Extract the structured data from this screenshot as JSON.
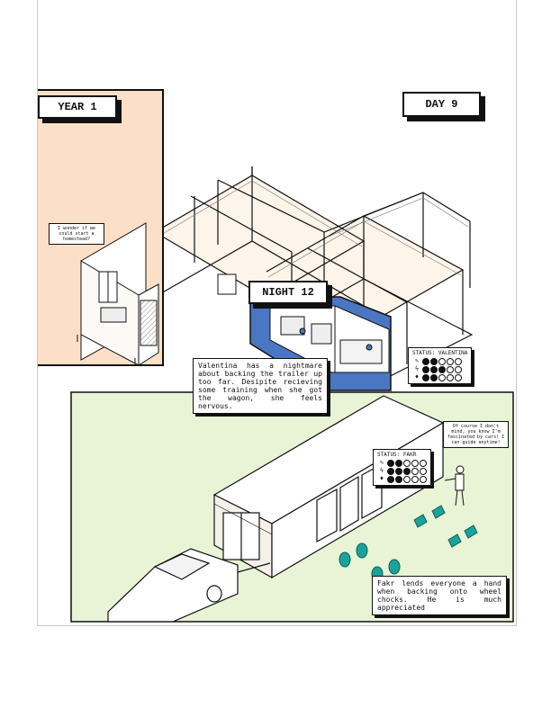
{
  "panels": {
    "year_label": "YEAR 1",
    "day_label": "DAY 9",
    "night_label": "NIGHT 12"
  },
  "bubbles": {
    "homestead": "I wonder if we could start a homestead?",
    "fakr_speech": "Of course I don't mind, you know I'm fascinated by cars! I can guide anytime!"
  },
  "captions": {
    "valentina": "Valentina has a nightmare about backing the trailer up too far. Desipite recieving some training when she got the wagon, she feels nervous.",
    "fakr": "Fakr lends everyone a hand when backing onto wheel chocks. He is much appreciated"
  },
  "status_valentina": {
    "title": "STATUS: VALENTINA",
    "rows": [
      {
        "icon": "wrench-icon",
        "glyph": "✎",
        "filled": 2,
        "total": 5
      },
      {
        "icon": "lightning-icon",
        "glyph": "ϟ",
        "filled": 3,
        "total": 5
      },
      {
        "icon": "thumbs-up-icon",
        "glyph": "♦",
        "filled": 2,
        "total": 5
      }
    ]
  },
  "status_fakr": {
    "title": "STATUS: FAKR",
    "rows": [
      {
        "icon": "wrench-icon",
        "glyph": "✎",
        "filled": 2,
        "total": 5
      },
      {
        "icon": "lightning-icon",
        "glyph": "ϟ",
        "filled": 3,
        "total": 5
      },
      {
        "icon": "thumbs-up-icon",
        "glyph": "♦",
        "filled": 2,
        "total": 5
      }
    ]
  },
  "colors": {
    "year_panel_bg": "#fbe0c7",
    "night_panel_bg": "#4a76c2",
    "ground_bg": "#e9f3d6",
    "chock_teal": "#1aa39a",
    "ink": "#111111"
  }
}
